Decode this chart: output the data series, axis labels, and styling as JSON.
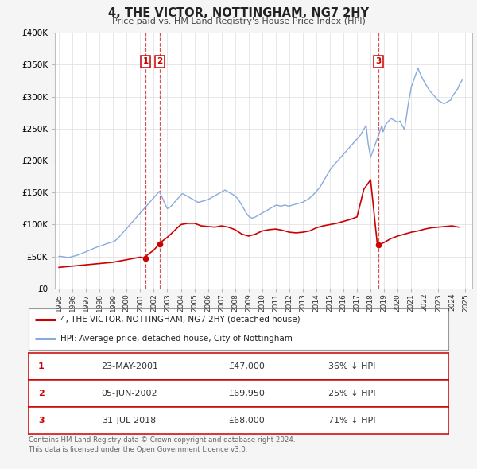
{
  "title": "4, THE VICTOR, NOTTINGHAM, NG7 2HY",
  "subtitle": "Price paid vs. HM Land Registry's House Price Index (HPI)",
  "background_color": "#f5f5f5",
  "plot_bg_color": "#ffffff",
  "ylim": [
    0,
    400000
  ],
  "yticks": [
    0,
    50000,
    100000,
    150000,
    200000,
    250000,
    300000,
    350000,
    400000
  ],
  "ytick_labels": [
    "£0",
    "£50K",
    "£100K",
    "£150K",
    "£200K",
    "£250K",
    "£300K",
    "£350K",
    "£400K"
  ],
  "xlim_start": 1994.7,
  "xlim_end": 2025.5,
  "xtick_years": [
    1995,
    1996,
    1997,
    1998,
    1999,
    2000,
    2001,
    2002,
    2003,
    2004,
    2005,
    2006,
    2007,
    2008,
    2009,
    2010,
    2011,
    2012,
    2013,
    2014,
    2015,
    2016,
    2017,
    2018,
    2019,
    2020,
    2021,
    2022,
    2023,
    2024,
    2025
  ],
  "red_line_color": "#cc0000",
  "blue_line_color": "#88aadd",
  "transaction_marker_color": "#cc0000",
  "vline_color": "#cc3333",
  "sale_points": [
    {
      "year": 2001.388,
      "value": 47000,
      "label": "1"
    },
    {
      "year": 2002.42,
      "value": 69950,
      "label": "2"
    },
    {
      "year": 2018.58,
      "value": 68000,
      "label": "3"
    }
  ],
  "legend_red_label": "4, THE VICTOR, NOTTINGHAM, NG7 2HY (detached house)",
  "legend_blue_label": "HPI: Average price, detached house, City of Nottingham",
  "table_rows": [
    {
      "num": "1",
      "date": "23-MAY-2001",
      "price": "£47,000",
      "hpi": "36% ↓ HPI"
    },
    {
      "num": "2",
      "date": "05-JUN-2002",
      "price": "£69,950",
      "hpi": "25% ↓ HPI"
    },
    {
      "num": "3",
      "date": "31-JUL-2018",
      "price": "£68,000",
      "hpi": "71% ↓ HPI"
    }
  ],
  "footer_text": "Contains HM Land Registry data © Crown copyright and database right 2024.\nThis data is licensed under the Open Government Licence v3.0.",
  "hpi_data": {
    "years": [
      1995.0,
      1995.08,
      1995.17,
      1995.25,
      1995.33,
      1995.42,
      1995.5,
      1995.58,
      1995.67,
      1995.75,
      1995.83,
      1995.92,
      1996.0,
      1996.08,
      1996.17,
      1996.25,
      1996.33,
      1996.42,
      1996.5,
      1996.58,
      1996.67,
      1996.75,
      1996.83,
      1996.92,
      1997.0,
      1997.08,
      1997.17,
      1997.25,
      1997.33,
      1997.42,
      1997.5,
      1997.58,
      1997.67,
      1997.75,
      1997.83,
      1997.92,
      1998.0,
      1998.08,
      1998.17,
      1998.25,
      1998.33,
      1998.42,
      1998.5,
      1998.58,
      1998.67,
      1998.75,
      1998.83,
      1998.92,
      1999.0,
      1999.08,
      1999.17,
      1999.25,
      1999.33,
      1999.42,
      1999.5,
      1999.58,
      1999.67,
      1999.75,
      1999.83,
      1999.92,
      2000.0,
      2000.08,
      2000.17,
      2000.25,
      2000.33,
      2000.42,
      2000.5,
      2000.58,
      2000.67,
      2000.75,
      2000.83,
      2000.92,
      2001.0,
      2001.08,
      2001.17,
      2001.25,
      2001.33,
      2001.42,
      2001.5,
      2001.58,
      2001.67,
      2001.75,
      2001.83,
      2001.92,
      2002.0,
      2002.08,
      2002.17,
      2002.25,
      2002.33,
      2002.42,
      2002.5,
      2002.58,
      2002.67,
      2002.75,
      2002.83,
      2002.92,
      2003.0,
      2003.08,
      2003.17,
      2003.25,
      2003.33,
      2003.42,
      2003.5,
      2003.58,
      2003.67,
      2003.75,
      2003.83,
      2003.92,
      2004.0,
      2004.08,
      2004.17,
      2004.25,
      2004.33,
      2004.42,
      2004.5,
      2004.58,
      2004.67,
      2004.75,
      2004.83,
      2004.92,
      2005.0,
      2005.08,
      2005.17,
      2005.25,
      2005.33,
      2005.42,
      2005.5,
      2005.58,
      2005.67,
      2005.75,
      2005.83,
      2005.92,
      2006.0,
      2006.08,
      2006.17,
      2006.25,
      2006.33,
      2006.42,
      2006.5,
      2006.58,
      2006.67,
      2006.75,
      2006.83,
      2006.92,
      2007.0,
      2007.08,
      2007.17,
      2007.25,
      2007.33,
      2007.42,
      2007.5,
      2007.58,
      2007.67,
      2007.75,
      2007.83,
      2007.92,
      2008.0,
      2008.08,
      2008.17,
      2008.25,
      2008.33,
      2008.42,
      2008.5,
      2008.58,
      2008.67,
      2008.75,
      2008.83,
      2008.92,
      2009.0,
      2009.08,
      2009.17,
      2009.25,
      2009.33,
      2009.42,
      2009.5,
      2009.58,
      2009.67,
      2009.75,
      2009.83,
      2009.92,
      2010.0,
      2010.08,
      2010.17,
      2010.25,
      2010.33,
      2010.42,
      2010.5,
      2010.58,
      2010.67,
      2010.75,
      2010.83,
      2010.92,
      2011.0,
      2011.08,
      2011.17,
      2011.25,
      2011.33,
      2011.42,
      2011.5,
      2011.58,
      2011.67,
      2011.75,
      2011.83,
      2011.92,
      2012.0,
      2012.08,
      2012.17,
      2012.25,
      2012.33,
      2012.42,
      2012.5,
      2012.58,
      2012.67,
      2012.75,
      2012.83,
      2012.92,
      2013.0,
      2013.08,
      2013.17,
      2013.25,
      2013.33,
      2013.42,
      2013.5,
      2013.58,
      2013.67,
      2013.75,
      2013.83,
      2013.92,
      2014.0,
      2014.08,
      2014.17,
      2014.25,
      2014.33,
      2014.42,
      2014.5,
      2014.58,
      2014.67,
      2014.75,
      2014.83,
      2014.92,
      2015.0,
      2015.08,
      2015.17,
      2015.25,
      2015.33,
      2015.42,
      2015.5,
      2015.58,
      2015.67,
      2015.75,
      2015.83,
      2015.92,
      2016.0,
      2016.08,
      2016.17,
      2016.25,
      2016.33,
      2016.42,
      2016.5,
      2016.58,
      2016.67,
      2016.75,
      2016.83,
      2016.92,
      2017.0,
      2017.08,
      2017.17,
      2017.25,
      2017.33,
      2017.42,
      2017.5,
      2017.58,
      2017.67,
      2017.75,
      2017.83,
      2017.92,
      2018.0,
      2018.08,
      2018.17,
      2018.25,
      2018.33,
      2018.42,
      2018.5,
      2018.58,
      2018.67,
      2018.75,
      2018.83,
      2018.92,
      2019.0,
      2019.08,
      2019.17,
      2019.25,
      2019.33,
      2019.42,
      2019.5,
      2019.58,
      2019.67,
      2019.75,
      2019.83,
      2019.92,
      2020.0,
      2020.08,
      2020.17,
      2020.25,
      2020.33,
      2020.42,
      2020.5,
      2020.58,
      2020.67,
      2020.75,
      2020.83,
      2020.92,
      2021.0,
      2021.08,
      2021.17,
      2021.25,
      2021.33,
      2021.42,
      2021.5,
      2021.58,
      2021.67,
      2021.75,
      2021.83,
      2021.92,
      2022.0,
      2022.08,
      2022.17,
      2022.25,
      2022.33,
      2022.42,
      2022.5,
      2022.58,
      2022.67,
      2022.75,
      2022.83,
      2022.92,
      2023.0,
      2023.08,
      2023.17,
      2023.25,
      2023.33,
      2023.42,
      2023.5,
      2023.58,
      2023.67,
      2023.75,
      2023.83,
      2023.92,
      2024.0,
      2024.08,
      2024.17,
      2024.25,
      2024.33,
      2024.42,
      2024.5,
      2024.58,
      2024.67,
      2024.75
    ],
    "values": [
      50000,
      50500,
      50200,
      49800,
      49500,
      49200,
      49000,
      48800,
      48600,
      48700,
      49000,
      49500,
      50000,
      50500,
      51000,
      51500,
      52000,
      52500,
      53000,
      53800,
      54500,
      55200,
      56000,
      56800,
      57500,
      58200,
      59000,
      59800,
      60500,
      61200,
      62000,
      62800,
      63500,
      64200,
      65000,
      65500,
      66000,
      66500,
      67000,
      67800,
      68500,
      69200,
      70000,
      70500,
      71000,
      71500,
      72000,
      72500,
      73000,
      74000,
      75000,
      76500,
      78000,
      80000,
      82000,
      84000,
      86000,
      88000,
      90000,
      92000,
      94000,
      96000,
      98000,
      100000,
      102000,
      104000,
      106000,
      108000,
      110000,
      112000,
      114000,
      116000,
      118000,
      120000,
      122000,
      124000,
      126000,
      128000,
      130000,
      132000,
      134000,
      136000,
      138000,
      140000,
      142000,
      144000,
      146000,
      148000,
      150000,
      152000,
      148000,
      144000,
      140000,
      136000,
      132000,
      128000,
      125000,
      126000,
      127000,
      128000,
      130000,
      132000,
      134000,
      136000,
      138000,
      140000,
      142000,
      144000,
      146000,
      148000,
      148000,
      147000,
      146000,
      145000,
      144000,
      143000,
      142000,
      141000,
      140000,
      139000,
      138000,
      137000,
      136000,
      135000,
      135000,
      135500,
      136000,
      136500,
      137000,
      137500,
      138000,
      138500,
      139000,
      140000,
      141000,
      142000,
      143000,
      144000,
      145000,
      146000,
      147000,
      148000,
      149000,
      150000,
      151000,
      152000,
      153000,
      154000,
      153000,
      152000,
      151000,
      150000,
      149000,
      148000,
      147000,
      146000,
      145000,
      143000,
      141000,
      139000,
      136000,
      133000,
      130000,
      127000,
      124000,
      121000,
      118000,
      115000,
      113000,
      112000,
      111000,
      110000,
      110500,
      111000,
      112000,
      113000,
      114000,
      115000,
      116000,
      117000,
      118000,
      119000,
      120000,
      121000,
      122000,
      123000,
      124000,
      125000,
      126000,
      127000,
      128000,
      129000,
      130000,
      130500,
      130000,
      129500,
      129000,
      129000,
      129500,
      130000,
      130500,
      130000,
      129500,
      129000,
      129000,
      129500,
      130000,
      130500,
      131000,
      131500,
      132000,
      132500,
      133000,
      133500,
      134000,
      134500,
      135000,
      136000,
      137000,
      138000,
      139000,
      140000,
      141500,
      143000,
      144500,
      146000,
      148000,
      150000,
      152000,
      154000,
      156000,
      158000,
      161000,
      164000,
      167000,
      170000,
      173000,
      176000,
      179000,
      182000,
      185000,
      188000,
      190000,
      192000,
      194000,
      196000,
      198000,
      200000,
      202000,
      204000,
      206000,
      208000,
      210000,
      212000,
      214000,
      216000,
      218000,
      220000,
      222000,
      224000,
      226000,
      228000,
      230000,
      232000,
      234000,
      236000,
      238000,
      240000,
      243000,
      246000,
      249000,
      252000,
      255000,
      240000,
      225000,
      215000,
      205000,
      210000,
      215000,
      220000,
      225000,
      230000,
      235000,
      240000,
      245000,
      250000,
      255000,
      245000,
      250000,
      255000,
      258000,
      260000,
      262000,
      264000,
      266000,
      265000,
      264000,
      263000,
      262000,
      261000,
      260000,
      261000,
      262000,
      258000,
      255000,
      252000,
      248000,
      260000,
      272000,
      285000,
      295000,
      305000,
      315000,
      320000,
      325000,
      330000,
      335000,
      340000,
      345000,
      340000,
      336000,
      332000,
      328000,
      325000,
      322000,
      319000,
      316000,
      313000,
      310000,
      308000,
      306000,
      304000,
      302000,
      300000,
      298000,
      296000,
      294000,
      293000,
      292000,
      291000,
      290000,
      289000,
      290000,
      291000,
      292000,
      293000,
      294000,
      295000,
      300000,
      302000,
      305000,
      307000,
      310000,
      312000,
      316000,
      320000,
      323000,
      326000
    ]
  },
  "red_data": {
    "years": [
      1995.0,
      1995.5,
      1996.0,
      1996.5,
      1997.0,
      1997.5,
      1998.0,
      1998.5,
      1999.0,
      1999.5,
      2000.0,
      2000.5,
      2001.0,
      2001.388,
      2001.5,
      2002.0,
      2002.42,
      2002.5,
      2003.0,
      2003.5,
      2004.0,
      2004.5,
      2005.0,
      2005.5,
      2006.0,
      2006.5,
      2007.0,
      2007.5,
      2008.0,
      2008.5,
      2009.0,
      2009.5,
      2010.0,
      2010.5,
      2011.0,
      2011.5,
      2012.0,
      2012.5,
      2013.0,
      2013.5,
      2014.0,
      2014.5,
      2015.0,
      2015.5,
      2016.0,
      2016.5,
      2017.0,
      2017.5,
      2018.0,
      2018.5,
      2018.58,
      2019.0,
      2019.5,
      2020.0,
      2020.5,
      2021.0,
      2021.5,
      2022.0,
      2022.5,
      2023.0,
      2023.5,
      2024.0,
      2024.5
    ],
    "values": [
      33000,
      34000,
      35000,
      36000,
      37000,
      38000,
      39000,
      40000,
      41000,
      43000,
      45000,
      47000,
      49000,
      47000,
      52000,
      60000,
      69950,
      72000,
      80000,
      90000,
      100000,
      102000,
      102000,
      98000,
      97000,
      96000,
      98000,
      96000,
      92000,
      85000,
      82000,
      85000,
      90000,
      92000,
      93000,
      91000,
      88000,
      87000,
      88000,
      90000,
      95000,
      98000,
      100000,
      102000,
      105000,
      108000,
      112000,
      155000,
      170000,
      68000,
      68000,
      72000,
      78000,
      82000,
      85000,
      88000,
      90000,
      93000,
      95000,
      96000,
      97000,
      98000,
      96000
    ]
  }
}
